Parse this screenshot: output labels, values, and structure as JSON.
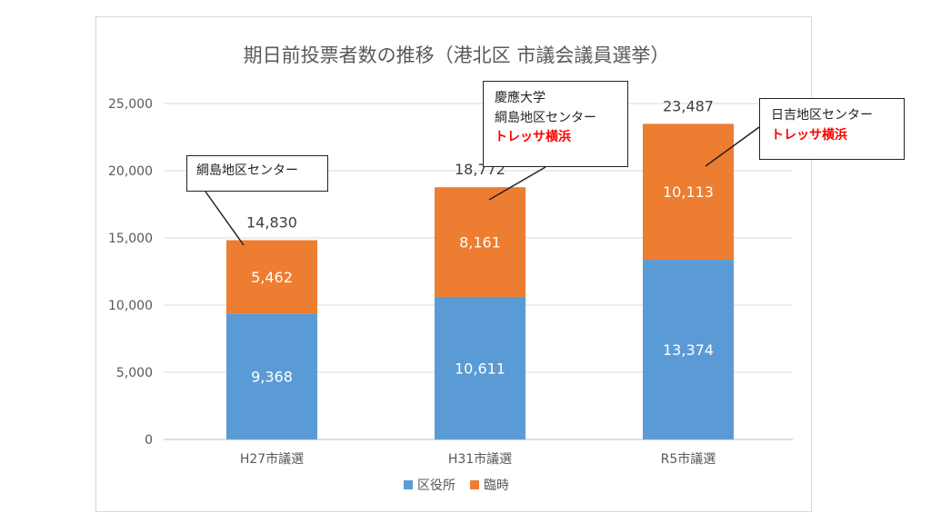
{
  "chart_data": {
    "type": "bar",
    "stacked": true,
    "title": "期日前投票者数の推移（港北区 市議会議員選挙）",
    "categories": [
      "H27市議選",
      "H31市議選",
      "R5市議選"
    ],
    "series": [
      {
        "name": "区役所",
        "color": "#5b9bd5",
        "values": [
          9368,
          10611,
          13374
        ]
      },
      {
        "name": "臨時",
        "color": "#ed7d31",
        "values": [
          5462,
          8161,
          10113
        ]
      }
    ],
    "totals": [
      14830,
      18772,
      23487
    ],
    "totals_labels": [
      "14,830",
      "18,772",
      "23,487"
    ],
    "ylim": [
      0,
      25000
    ],
    "yticks": [
      0,
      5000,
      10000,
      15000,
      20000,
      25000
    ],
    "ytick_labels": [
      "0",
      "5,000",
      "10,000",
      "15,000",
      "20,000",
      "25,000"
    ],
    "grid": true,
    "legend_position": "bottom"
  },
  "callouts": [
    {
      "lines": [
        {
          "text": "綱島地区センター",
          "highlight": false
        }
      ]
    },
    {
      "lines": [
        {
          "text": "慶應大学",
          "highlight": false
        },
        {
          "text": "綱島地区センター",
          "highlight": false
        },
        {
          "text": "トレッサ横浜",
          "highlight": true
        }
      ]
    },
    {
      "lines": [
        {
          "text": "日吉地区センター",
          "highlight": false
        },
        {
          "text": "トレッサ横浜",
          "highlight": true
        }
      ]
    }
  ]
}
